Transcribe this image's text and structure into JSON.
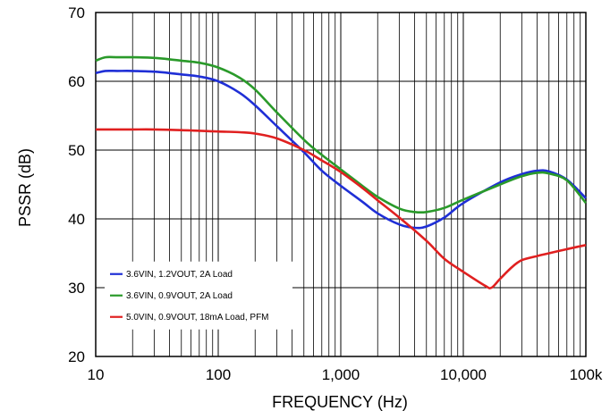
{
  "chart_data": {
    "type": "line",
    "xlabel": "FREQUENCY (Hz)",
    "ylabel": "PSSR (dB)",
    "x_scale": "log",
    "xlim": [
      10,
      100000
    ],
    "ylim": [
      20,
      70
    ],
    "grid": true,
    "legend_position": "bottom-left",
    "x_ticks": [
      10,
      100,
      1000,
      10000,
      100000
    ],
    "x_tick_labels": [
      "10",
      "100",
      "1,000",
      "10,000",
      "100k"
    ],
    "y_ticks": [
      20,
      30,
      40,
      50,
      60,
      70
    ],
    "y_tick_labels": [
      "20",
      "30",
      "40",
      "50",
      "60",
      "70"
    ],
    "series": [
      {
        "name": "3.6VIN, 1.2VOUT, 2A Load",
        "color": "#1f2fd6",
        "x": [
          10,
          12,
          15,
          20,
          30,
          40,
          50,
          70,
          100,
          150,
          200,
          300,
          500,
          700,
          1000,
          1500,
          2000,
          3000,
          4000,
          5000,
          7000,
          10000,
          20000,
          30000,
          40000,
          50000,
          70000,
          100000
        ],
        "y": [
          61.2,
          61.5,
          61.5,
          61.5,
          61.4,
          61.2,
          61.0,
          60.7,
          60.0,
          58.3,
          56.5,
          53.5,
          49.7,
          47.0,
          44.8,
          42.5,
          40.8,
          39.2,
          38.7,
          38.9,
          40.2,
          42.3,
          45.3,
          46.5,
          47.0,
          46.9,
          45.7,
          43.0
        ]
      },
      {
        "name": "3.6VIN, 0.9VOUT, 2A Load",
        "color": "#2a9a2a",
        "x": [
          10,
          12,
          15,
          20,
          30,
          40,
          50,
          70,
          100,
          150,
          200,
          300,
          500,
          700,
          1000,
          1500,
          2000,
          3000,
          4000,
          5000,
          7000,
          10000,
          20000,
          30000,
          40000,
          50000,
          70000,
          100000
        ],
        "y": [
          63.0,
          63.5,
          63.5,
          63.5,
          63.4,
          63.2,
          63.0,
          62.7,
          62.0,
          60.5,
          58.8,
          55.5,
          51.5,
          49.3,
          47.2,
          44.8,
          43.2,
          41.5,
          41.0,
          41.0,
          41.6,
          42.8,
          45.0,
          46.2,
          46.7,
          46.6,
          45.6,
          42.3
        ]
      },
      {
        "name": "5.0VIN, 0.9VOUT, 18mA Load, PFM",
        "color": "#e02020",
        "x": [
          10,
          15,
          20,
          30,
          50,
          70,
          100,
          150,
          200,
          300,
          500,
          700,
          1000,
          1500,
          2000,
          3000,
          5000,
          7000,
          10000,
          15000,
          17000,
          20000,
          25000,
          30000,
          40000,
          50000,
          70000,
          100000
        ],
        "y": [
          53.0,
          53.0,
          53.0,
          53.0,
          52.9,
          52.8,
          52.7,
          52.6,
          52.4,
          51.7,
          50.0,
          48.5,
          46.8,
          44.5,
          42.7,
          40.2,
          36.8,
          34.2,
          32.3,
          30.3,
          30.0,
          31.3,
          33.0,
          34.0,
          34.6,
          35.0,
          35.6,
          36.2
        ]
      }
    ]
  }
}
